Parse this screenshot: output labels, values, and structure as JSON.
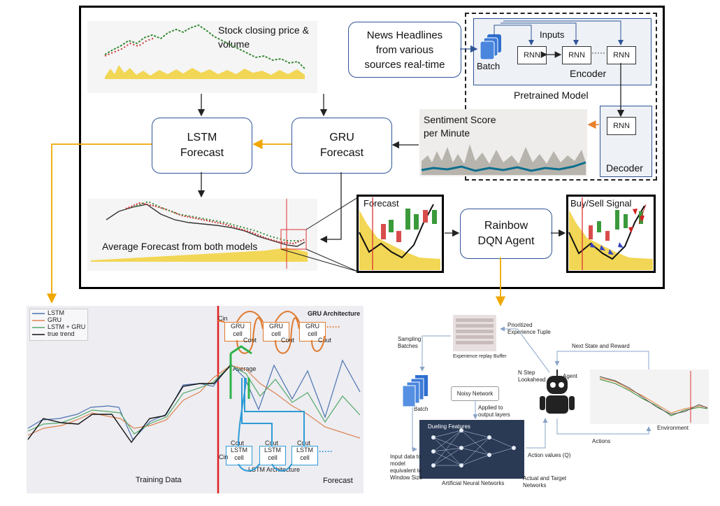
{
  "top": {
    "stock_chart_title": "Stock closing price & volume",
    "lstm_box": "LSTM\nForecast",
    "gru_box": "GRU\nForecast",
    "average_label": "Average Forecast from both models",
    "news_box": "News Headlines\nfrom various\nsources real-time",
    "inputs_label": "Inputs",
    "batch_label": "Batch",
    "rnn_label": "RNN",
    "ellipsis": "·····",
    "encoder_label": "Encoder",
    "pretrained_label": "Pretrained Model",
    "decoder_label": "Decoder",
    "sentiment_label": "Sentiment Score\nper Minute",
    "forecast_panel_label": "Forecast",
    "rainbow_box": "Rainbow\nDQN Agent",
    "signal_label": "Buy/Sell Signal"
  },
  "bottom_left": {
    "legend": [
      {
        "name": "LSTM",
        "color": "#4c72b0"
      },
      {
        "name": "GRU",
        "color": "#dd8452"
      },
      {
        "name": "LSTM + GRU",
        "color": "#55a868"
      },
      {
        "name": "true trend",
        "color": "#222222"
      }
    ],
    "gru_arch_title": "GRU Architecture",
    "lstm_arch_title": "LSTM Architecture",
    "gru_cell": "GRU\ncell",
    "lstm_cell": "LSTM\ncell",
    "cin": "Cin",
    "cout": "Cout",
    "average": "Average",
    "dots": "·····",
    "training_label": "Training Data",
    "forecast_label": "Forecast"
  },
  "bottom_right": {
    "prioritized_label": "Prioritized\nExperience Tuple",
    "replay_caption": "Experience replay Buffer",
    "sampling_label": "Sampling\nBatches",
    "batch_label": "Batch",
    "noisy_label": "Noisy Network",
    "applied_label": "Applied to\noutput layers",
    "dueling_label": "Dueling Features",
    "ann_label": "Artificial Neural Networks",
    "input_label": "Input data to\nmodel\nequivalent to\nWindow Size",
    "nstep_label": "N Step\nLookahead",
    "agent_label": "Agent",
    "next_state_label": "Next State and Reward",
    "environment_label": "Environment",
    "actions_label": "Actions",
    "action_values_label": "Action values (Q)",
    "actual_target_label": "Actual and Target\nNetworks"
  }
}
